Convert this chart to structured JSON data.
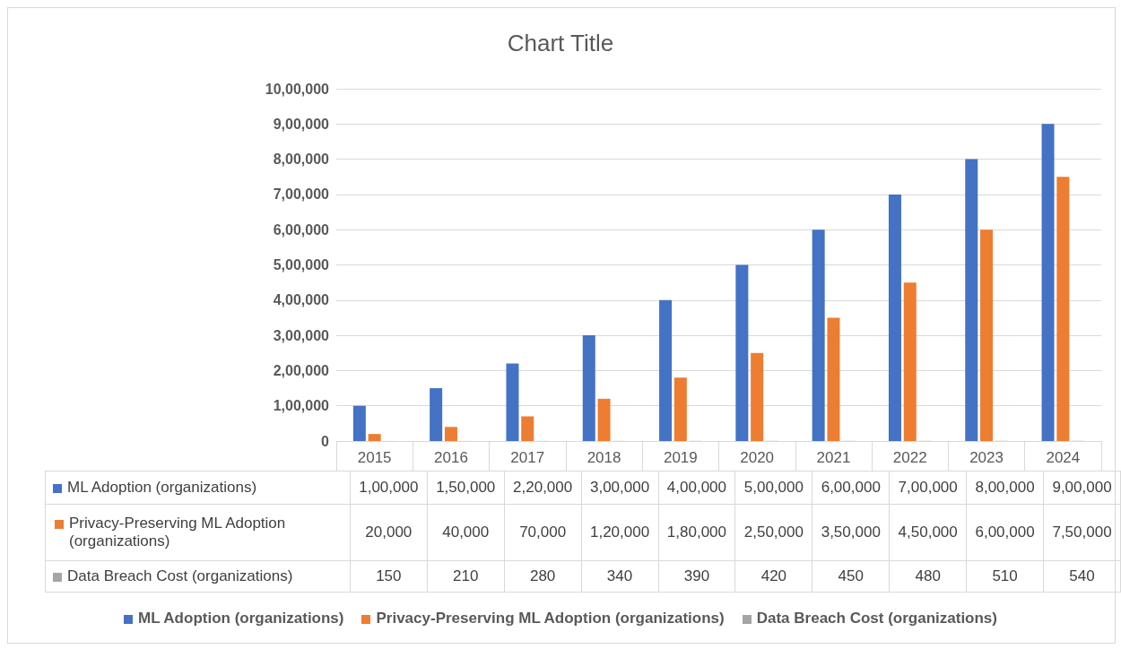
{
  "chart_data": {
    "type": "bar",
    "title": "Chart Title",
    "categories": [
      "2015",
      "2016",
      "2017",
      "2018",
      "2019",
      "2020",
      "2021",
      "2022",
      "2023",
      "2024"
    ],
    "series": [
      {
        "name": "ML Adoption (organizations)",
        "color": "#4472c4",
        "values": [
          100000,
          150000,
          220000,
          300000,
          400000,
          500000,
          600000,
          700000,
          800000,
          900000
        ],
        "value_labels": [
          "1,00,000",
          "1,50,000",
          "2,20,000",
          "3,00,000",
          "4,00,000",
          "5,00,000",
          "6,00,000",
          "7,00,000",
          "8,00,000",
          "9,00,000"
        ]
      },
      {
        "name": "Privacy-Preserving ML Adoption (organizations)",
        "color": "#ed7d31",
        "values": [
          20000,
          40000,
          70000,
          120000,
          180000,
          250000,
          350000,
          450000,
          600000,
          750000
        ],
        "value_labels": [
          "20,000",
          "40,000",
          "70,000",
          "1,20,000",
          "1,80,000",
          "2,50,000",
          "3,50,000",
          "4,50,000",
          "6,00,000",
          "7,50,000"
        ]
      },
      {
        "name": "Data Breach Cost (organizations)",
        "color": "#a5a5a5",
        "values": [
          150,
          210,
          280,
          340,
          390,
          420,
          450,
          480,
          510,
          540
        ],
        "value_labels": [
          "150",
          "210",
          "280",
          "340",
          "390",
          "420",
          "450",
          "480",
          "510",
          "540"
        ]
      }
    ],
    "ylim": [
      0,
      1000000
    ],
    "yticks": [
      0,
      {
        "value": 100000,
        "label": "1,00,000"
      },
      {
        "value": 200000,
        "label": "2,00,000"
      },
      {
        "value": 300000,
        "label": "3,00,000"
      },
      {
        "value": 400000,
        "label": "4,00,000"
      },
      {
        "value": 500000,
        "label": "5,00,000"
      },
      {
        "value": 600000,
        "label": "6,00,000"
      },
      {
        "value": 700000,
        "label": "7,00,000"
      },
      {
        "value": 800000,
        "label": "8,00,000"
      },
      {
        "value": 900000,
        "label": "9,00,000"
      },
      {
        "value": 1000000,
        "label": "10,00,000"
      }
    ],
    "grid": "y",
    "legend": "bottom"
  }
}
